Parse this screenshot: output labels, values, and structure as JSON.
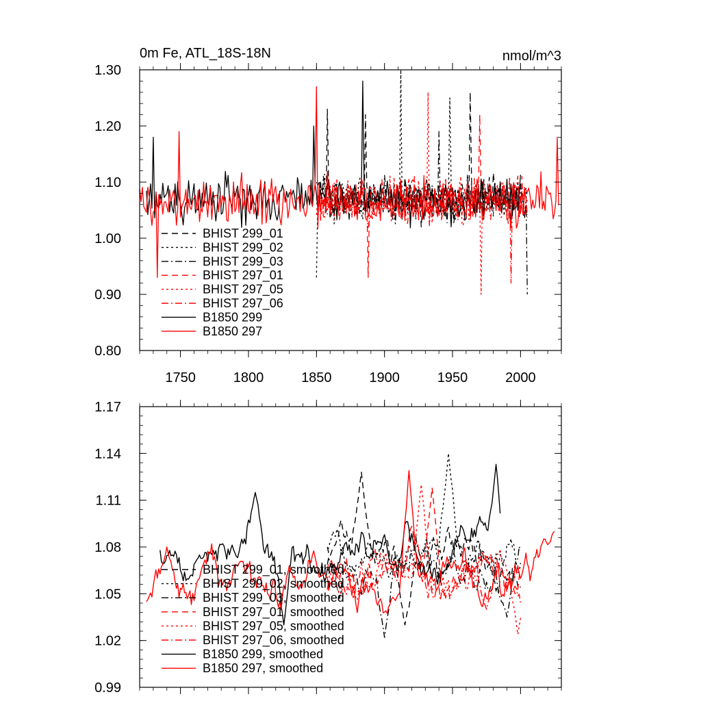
{
  "chart_data": [
    {
      "type": "line",
      "title": "0m Fe, ATL_18S-18N",
      "units": "nmol/m^3",
      "xlim": [
        1720,
        2030
      ],
      "ylim": [
        0.8,
        1.3
      ],
      "x_ticks": [
        1750,
        1800,
        1850,
        1900,
        1950,
        2000
      ],
      "x_tick_labels": [
        "1750",
        "1800",
        "1850",
        "1900",
        "1950",
        "2000"
      ],
      "y_ticks": [
        0.8,
        0.9,
        1.0,
        1.1,
        1.2,
        1.3
      ],
      "y_tick_labels": [
        "0.80",
        "0.90",
        "1.00",
        "1.10",
        "1.20",
        "1.30"
      ],
      "legend_position": "bottom-left",
      "series": [
        {
          "name": "BHIST 299_01",
          "color": "#000000",
          "dash": "long-dash",
          "x_start": 1850,
          "x_end": 2005,
          "mean": 1.07,
          "amplitude": 0.055,
          "trend": 0.0,
          "seed": 11,
          "peaks": [
            [
              1858,
              1.23
            ],
            [
              1886,
              1.22
            ],
            [
              1963,
              1.26
            ]
          ]
        },
        {
          "name": "BHIST 299_02",
          "color": "#000000",
          "dash": "dot",
          "x_start": 1850,
          "x_end": 2005,
          "mean": 1.07,
          "amplitude": 0.055,
          "trend": 0.0,
          "seed": 23,
          "peaks": [
            [
              1850,
              0.93
            ],
            [
              1912,
              1.3
            ],
            [
              1948,
              1.25
            ]
          ]
        },
        {
          "name": "BHIST 299_03",
          "color": "#000000",
          "dash": "dash-dot",
          "x_start": 1850,
          "x_end": 2005,
          "mean": 1.07,
          "amplitude": 0.055,
          "trend": 0.0,
          "seed": 37,
          "peaks": [
            [
              1940,
              1.19
            ],
            [
              2005,
              0.9
            ]
          ]
        },
        {
          "name": "BHIST 297_01",
          "color": "#ff0000",
          "dash": "long-dash",
          "x_start": 1850,
          "x_end": 2005,
          "mean": 1.065,
          "amplitude": 0.055,
          "trend": 0.0,
          "seed": 41,
          "peaks": [
            [
              1888,
              0.93
            ],
            [
              1970,
              1.22
            ]
          ]
        },
        {
          "name": "BHIST 297_05",
          "color": "#ff0000",
          "dash": "dot",
          "x_start": 1850,
          "x_end": 2005,
          "mean": 1.065,
          "amplitude": 0.055,
          "trend": 0.0,
          "seed": 53,
          "peaks": [
            [
              1932,
              1.26
            ],
            [
              1971,
              0.9
            ]
          ]
        },
        {
          "name": "BHIST 297_06",
          "color": "#ff0000",
          "dash": "dash-dot",
          "x_start": 1850,
          "x_end": 2005,
          "mean": 1.065,
          "amplitude": 0.055,
          "trend": 0.0,
          "seed": 67,
          "peaks": [
            [
              1993,
              0.92
            ]
          ]
        },
        {
          "name": "B1850 299",
          "color": "#000000",
          "dash": "solid",
          "x_start": 1725,
          "x_end": 2000,
          "mean": 1.07,
          "amplitude": 0.06,
          "trend": 0.0,
          "seed": 79,
          "peaks": [
            [
              1730,
              1.18
            ],
            [
              1848,
              1.2
            ],
            [
              1884,
              1.28
            ]
          ]
        },
        {
          "name": "B1850 297",
          "color": "#ff0000",
          "dash": "solid",
          "x_start": 1720,
          "x_end": 2028,
          "mean": 1.065,
          "amplitude": 0.06,
          "trend": 0.0,
          "seed": 97,
          "peaks": [
            [
              1733,
              0.93
            ],
            [
              1749,
              1.19
            ],
            [
              1850,
              1.27
            ],
            [
              2027,
              1.18
            ]
          ]
        }
      ]
    },
    {
      "type": "line",
      "title": "",
      "xlim": [
        1720,
        2030
      ],
      "ylim": [
        0.99,
        1.17
      ],
      "x_ticks": [
        1750,
        1800,
        1850,
        1900,
        1950,
        2000
      ],
      "x_tick_labels": [],
      "y_ticks": [
        0.99,
        1.02,
        1.05,
        1.08,
        1.11,
        1.14,
        1.17
      ],
      "y_tick_labels": [
        "0.99",
        "1.02",
        "1.05",
        "1.08",
        "1.11",
        "1.14",
        "1.17"
      ],
      "legend_position": "bottom-left",
      "series": [
        {
          "name": "BHIST 299_01, smoothed",
          "color": "#000000",
          "dash": "long-dash",
          "x_start": 1858,
          "x_end": 2000,
          "mean": 1.072,
          "amplitude": 0.014,
          "trend": 0.0,
          "seed": 111,
          "peaks": [
            [
              1883,
              1.128
            ],
            [
              1915,
              1.03
            ]
          ]
        },
        {
          "name": "BHIST 299_02, smoothed",
          "color": "#000000",
          "dash": "dot",
          "x_start": 1858,
          "x_end": 2000,
          "mean": 1.075,
          "amplitude": 0.014,
          "trend": 0.0,
          "seed": 123,
          "peaks": [
            [
              1947,
              1.14
            ]
          ]
        },
        {
          "name": "BHIST 299_03, smoothed",
          "color": "#000000",
          "dash": "dash-dot",
          "x_start": 1858,
          "x_end": 2000,
          "mean": 1.07,
          "amplitude": 0.014,
          "trend": 0.0,
          "seed": 137,
          "peaks": [
            [
              1900,
              1.022
            ],
            [
              1990,
              1.035
            ]
          ]
        },
        {
          "name": "BHIST 297_01, smoothed",
          "color": "#ff0000",
          "dash": "long-dash",
          "x_start": 1858,
          "x_end": 2000,
          "mean": 1.065,
          "amplitude": 0.013,
          "trend": 0.0,
          "seed": 141,
          "peaks": [
            [
              1935,
              1.118
            ]
          ]
        },
        {
          "name": "BHIST 297_05, smoothed",
          "color": "#ff0000",
          "dash": "dot",
          "x_start": 1858,
          "x_end": 2000,
          "mean": 1.062,
          "amplitude": 0.013,
          "trend": 0.0,
          "seed": 153,
          "peaks": [
            [
              1927,
              1.12
            ],
            [
              1998,
              1.024
            ]
          ]
        },
        {
          "name": "BHIST 297_06, smoothed",
          "color": "#ff0000",
          "dash": "dash-dot",
          "x_start": 1858,
          "x_end": 2000,
          "mean": 1.06,
          "amplitude": 0.013,
          "trend": 0.0,
          "seed": 167,
          "peaks": [
            [
              1975,
              1.04
            ]
          ]
        },
        {
          "name": "B1850 299, smoothed",
          "color": "#000000",
          "dash": "solid",
          "x_start": 1735,
          "x_end": 1985,
          "mean": 1.075,
          "amplitude": 0.014,
          "trend": 0.0,
          "seed": 179,
          "peaks": [
            [
              1805,
              1.115
            ],
            [
              1982,
              1.133
            ],
            [
              1826,
              1.03
            ]
          ]
        },
        {
          "name": "B1850 297, smoothed",
          "color": "#ff0000",
          "dash": "solid",
          "x_start": 1725,
          "x_end": 2025,
          "mean": 1.062,
          "amplitude": 0.015,
          "trend": 0.0,
          "seed": 197,
          "peaks": [
            [
              1725,
              1.045
            ],
            [
              1740,
              1.08
            ],
            [
              1918,
              1.129
            ],
            [
              2025,
              1.09
            ]
          ]
        }
      ]
    }
  ]
}
